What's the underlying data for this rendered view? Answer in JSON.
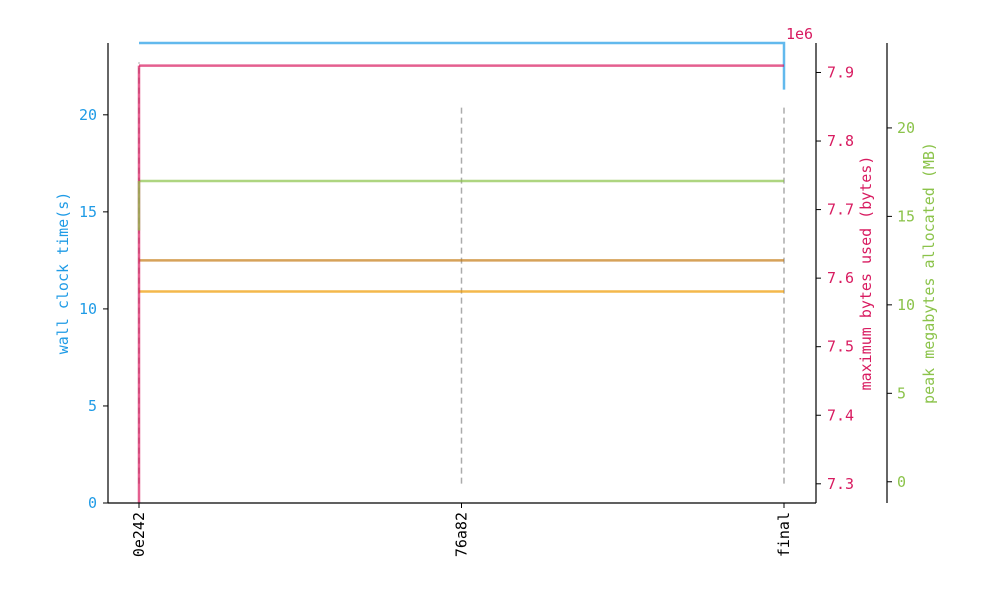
{
  "chart_data": {
    "type": "line",
    "x_ticks": [
      "0e242",
      "76a82",
      "final"
    ],
    "axes": {
      "left": {
        "label": "wall clock time(s)",
        "color": "#1f9be6",
        "ylim": [
          0,
          23.7
        ],
        "ticks": [
          0,
          5,
          10,
          15,
          20
        ]
      },
      "right1": {
        "label": "maximum bytes used (bytes)",
        "color": "#d81b60",
        "ylim": [
          7.272,
          7.943
        ],
        "ticks": [
          7.3,
          7.4,
          7.5,
          7.6,
          7.7,
          7.8,
          7.9
        ],
        "tick_labels": [
          "7.3",
          "7.4",
          "7.5",
          "7.6",
          "7.7",
          "7.8",
          "7.9"
        ],
        "multiplier": "1e6"
      },
      "right2": {
        "label": "peak megabytes allocated (MB)",
        "color": "#8bc34a",
        "ylim": [
          -1.2,
          24.8
        ],
        "ticks": [
          0,
          5,
          10,
          15,
          20
        ]
      }
    },
    "series": [
      {
        "axis": "left",
        "color": "#1f9be6",
        "values": [
          23.7,
          23.7,
          21.3
        ]
      },
      {
        "axis": "left",
        "color": "#c47a14",
        "values": [
          12.5,
          12.5,
          12.5
        ]
      },
      {
        "axis": "left",
        "color": "#f09a00",
        "values": [
          10.9,
          10.9,
          10.9
        ]
      },
      {
        "axis": "right1",
        "color": "#d81b60",
        "values": [
          7.91,
          7.91,
          7.91
        ]
      },
      {
        "axis": "right2",
        "color": "#8bc34a",
        "values": [
          17.0,
          17.0,
          17.0
        ]
      }
    ],
    "vlines": {
      "color": "#888888",
      "lines": [
        {
          "x_index": 0,
          "from": 1.0,
          "to": 22.7
        },
        {
          "x_index": 1,
          "from": 1.0,
          "to": 20.5
        },
        {
          "x_index": 2,
          "from": 1.0,
          "to": 20.5
        }
      ]
    }
  }
}
